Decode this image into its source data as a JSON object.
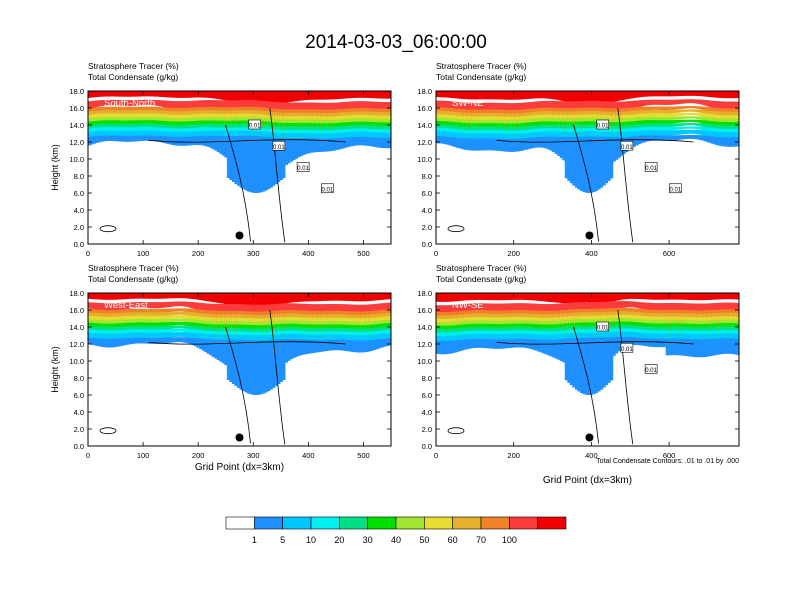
{
  "figure": {
    "title": "2014-03-03_06:00:00",
    "footnote": "Total Condensate Contours: .01 to .01 by .000",
    "xlabel": "Grid Point (dx=3km)",
    "ylabel": "Height (km)"
  },
  "colors": {
    "bins": [
      "#ffffff",
      "#1e90ff",
      "#00c8ff",
      "#00f0f0",
      "#00e089",
      "#00e000",
      "#a0e632",
      "#e6dc32",
      "#e6af2d",
      "#f08228",
      "#fa3c3c",
      "#f00000"
    ],
    "contour": "#000000",
    "marker": "#000000"
  },
  "colorbar": {
    "labels": [
      "1",
      "5",
      "10",
      "20",
      "30",
      "40",
      "50",
      "60",
      "70",
      "100"
    ]
  },
  "chart_data": [
    {
      "type": "heatmap",
      "panel": "South-North",
      "var_labels": [
        "Stratosphere Tracer   (%)",
        "Total Condensate   (g/kg)"
      ],
      "ylabel": "Height (km)",
      "xlim": [
        0,
        550
      ],
      "ylim": [
        0,
        18
      ],
      "xticks": [
        0,
        100,
        200,
        300,
        400,
        500
      ],
      "yticks": [
        "0.0",
        "2.0",
        "4.0",
        "6.0",
        "8.0",
        "10.0",
        "12.0",
        "14.0",
        "16.0",
        "18.0"
      ],
      "marker_x": 275,
      "contour_labels": [
        "0.01",
        "0.01",
        "0.01",
        "0.01"
      ]
    },
    {
      "type": "heatmap",
      "panel": "SW-NE",
      "var_labels": [
        "Stratosphere Tracer   (%)",
        "Total Condensate   (g/kg)"
      ],
      "ylabel": "",
      "xlim": [
        0,
        780
      ],
      "ylim": [
        0,
        18
      ],
      "xticks": [
        0,
        200,
        400,
        600
      ],
      "yticks": [
        "0.0",
        "2.0",
        "4.0",
        "6.0",
        "8.0",
        "10.0",
        "12.0",
        "14.0",
        "16.0",
        "18.0"
      ],
      "marker_x": 395,
      "contour_labels": [
        "0.01",
        "0.01",
        "0.01",
        "0.01"
      ]
    },
    {
      "type": "heatmap",
      "panel": "West-East",
      "var_labels": [
        "Stratosphere Tracer   (%)",
        "Total Condensate   (g/kg)"
      ],
      "ylabel": "Height (km)",
      "xlim": [
        0,
        550
      ],
      "ylim": [
        0,
        18
      ],
      "xticks": [
        0,
        100,
        200,
        300,
        400,
        500
      ],
      "yticks": [
        "0.0",
        "2.0",
        "4.0",
        "6.0",
        "8.0",
        "10.0",
        "12.0",
        "14.0",
        "16.0",
        "18.0"
      ],
      "marker_x": 275,
      "contour_labels": []
    },
    {
      "type": "heatmap",
      "panel": "NW-SE",
      "var_labels": [
        "Stratosphere Tracer   (%)",
        "Total Condensate   (g/kg)"
      ],
      "ylabel": "",
      "xlim": [
        0,
        780
      ],
      "ylim": [
        0,
        18
      ],
      "xticks": [
        0,
        200,
        400,
        600
      ],
      "yticks": [
        "0.0",
        "2.0",
        "4.0",
        "6.0",
        "8.0",
        "10.0",
        "12.0",
        "14.0",
        "16.0",
        "18.0"
      ],
      "marker_x": 395,
      "contour_labels": [
        "0.01",
        "0.01",
        "0.01"
      ]
    }
  ]
}
